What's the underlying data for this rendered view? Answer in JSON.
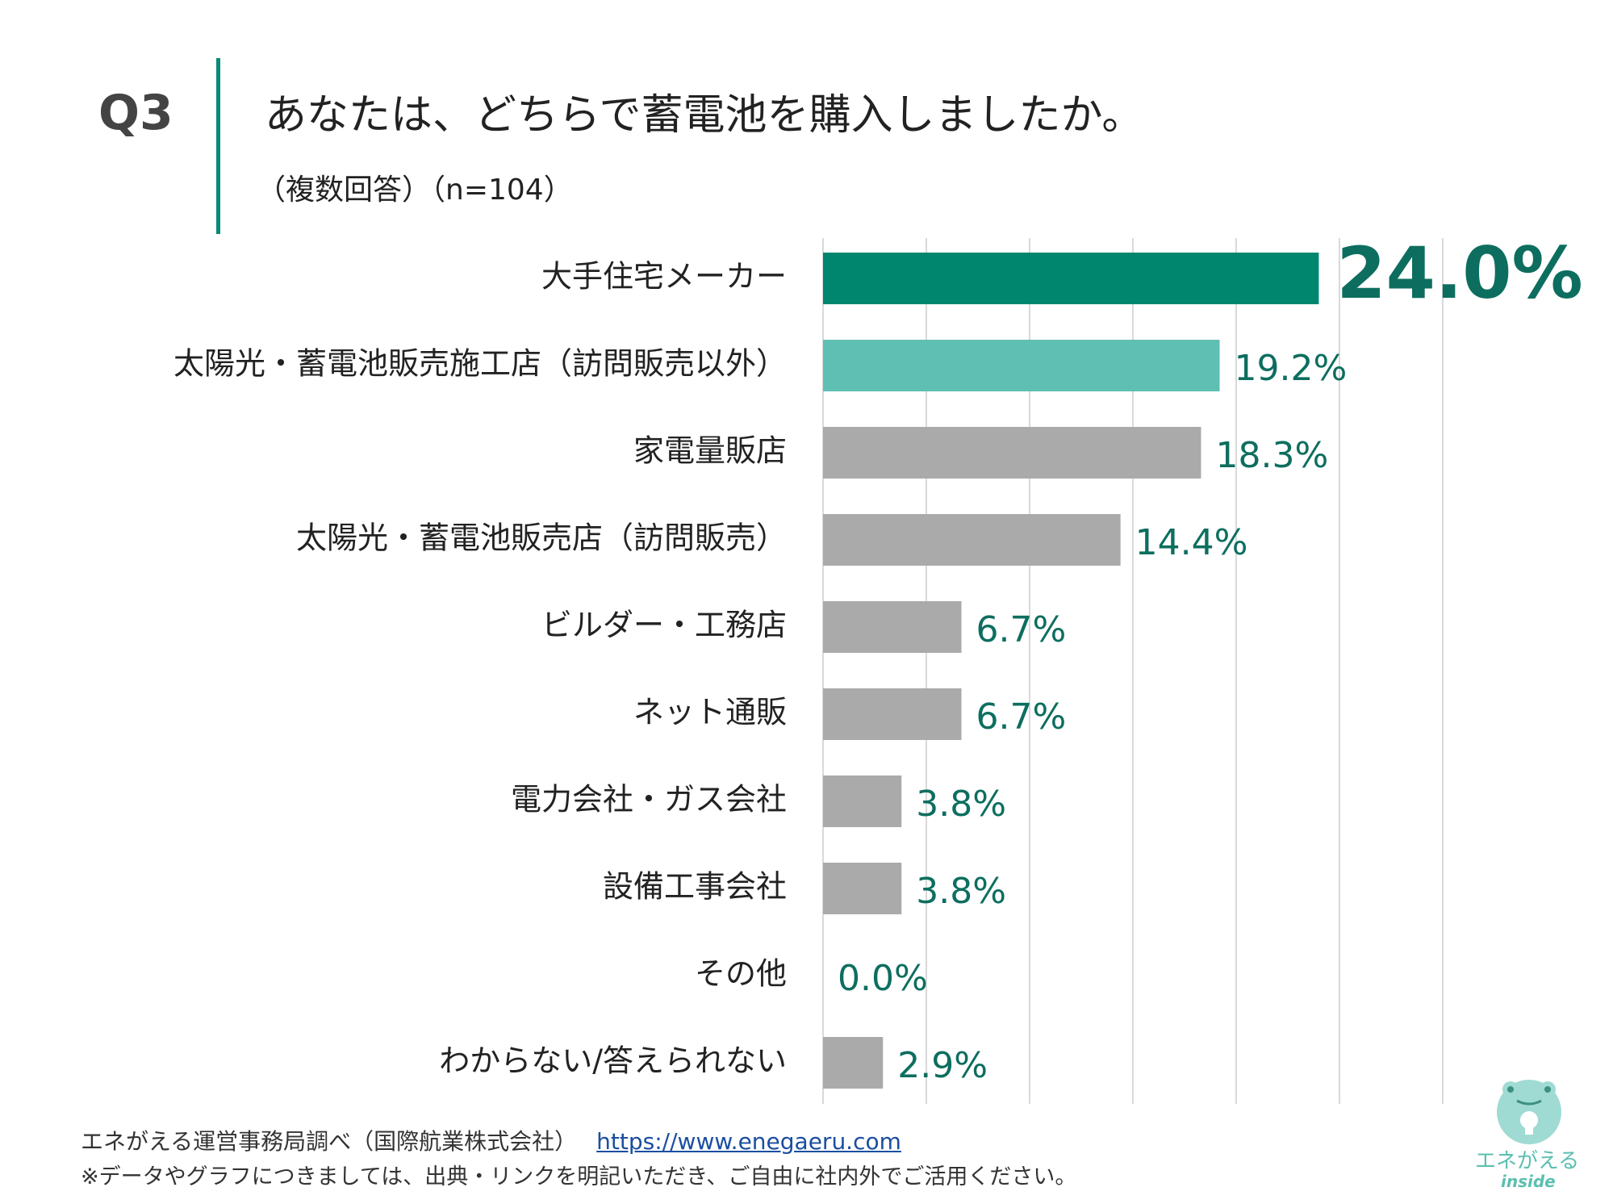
{
  "header": {
    "question_label": "Q3",
    "title": "あなたは、どちらで蓄電池を購入しましたか。",
    "subtitle": "（複数回答）（n=104）"
  },
  "colors": {
    "accent": "#0b8a78",
    "highlight_bar": "#00866f",
    "second_bar": "#5fbfb3",
    "other_bar": "#aaaaaa",
    "value_text": "#0d6e5f",
    "grid": "#d9d9d9"
  },
  "chart_data": {
    "type": "bar",
    "orientation": "horizontal",
    "title": "あなたは、どちらで蓄電池を購入しましたか。",
    "xlim": [
      0,
      30
    ],
    "grid": true,
    "unit": "%",
    "categories": [
      "大手住宅メーカー",
      "太陽光・蓄電池販売施工店（訪問販売以外）",
      "家電量販店",
      "太陽光・蓄電池販売店（訪問販売）",
      "ビルダー・工務店",
      "ネット通販",
      "電力会社・ガス会社",
      "設備工事会社",
      "その他",
      "わからない/答えられない"
    ],
    "values": [
      24.0,
      19.2,
      18.3,
      14.4,
      6.7,
      6.7,
      3.8,
      3.8,
      0.0,
      2.9
    ],
    "value_labels": [
      "24.0%",
      "19.2%",
      "18.3%",
      "14.4%",
      "6.7%",
      "6.7%",
      "3.8%",
      "3.8%",
      "0.0%",
      "2.9%"
    ]
  },
  "footer": {
    "source": "エネがえる運営事務局調べ（国際航業株式会社）",
    "url": "https://www.enegaeru.com",
    "note": "※データやグラフにつきましては、出典・リンクを明記いただき、ご自由に社内外でご活用ください。"
  },
  "logo": {
    "name": "エネがえる",
    "sub": "inside",
    "icon": "frog-lightbulb-icon"
  }
}
